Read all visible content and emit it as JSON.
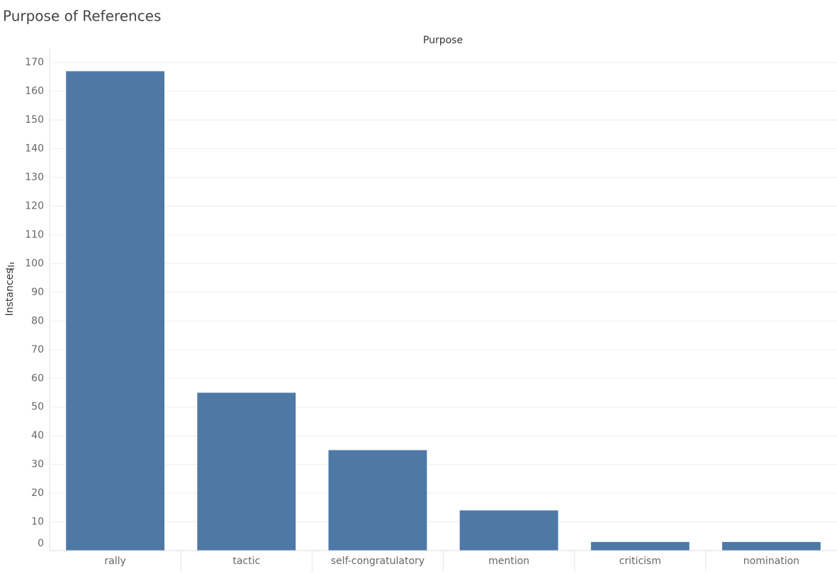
{
  "chart_data": {
    "type": "bar",
    "title": "Purpose of References",
    "x_header": "Purpose",
    "y_label": "Instances",
    "categories": [
      "rally",
      "tactic",
      "self-congratulatory",
      "mention",
      "criticism",
      "nomination"
    ],
    "values": [
      167,
      55,
      35,
      14,
      3,
      3
    ],
    "color": "#4e79a7",
    "ylim": [
      0,
      175
    ],
    "yticks": [
      0,
      10,
      20,
      30,
      40,
      50,
      60,
      70,
      80,
      90,
      100,
      110,
      120,
      130,
      140,
      150,
      160,
      170
    ],
    "grid": true
  }
}
